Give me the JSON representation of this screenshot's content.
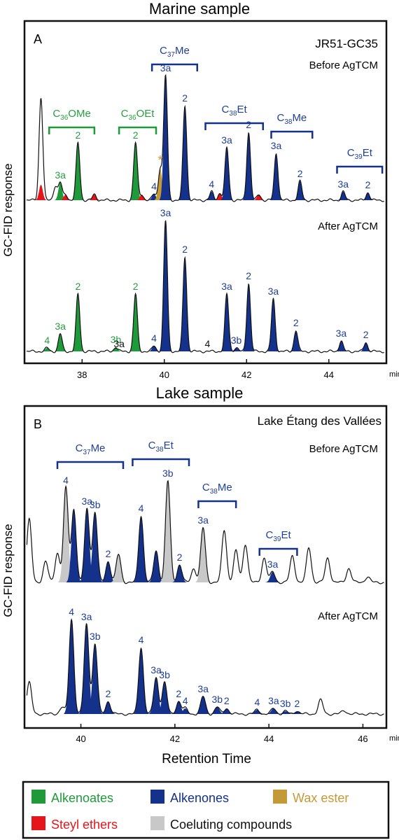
{
  "chart_data": [
    {
      "type": "line",
      "panel_label": "A",
      "title": "Marine sample",
      "sample": "JR51-GC35",
      "ylabel": "GC-FID response",
      "x_unit": "min",
      "xlim": [
        36.6,
        45.4
      ],
      "x_ticks": [
        38,
        40,
        42,
        44
      ],
      "traces": [
        {
          "label": "Before AgTCM",
          "baseline": 286,
          "peaks": [
            {
              "x": 37.0,
              "h": 125,
              "color": "none"
            },
            {
              "x": 37.0,
              "h": 22,
              "color": "red"
            },
            {
              "x": 37.35,
              "h": 20,
              "color": "none"
            },
            {
              "x": 37.47,
              "h": 25,
              "color": "green",
              "label": "3a"
            },
            {
              "x": 37.6,
              "h": 8,
              "color": "red"
            },
            {
              "x": 37.9,
              "h": 82,
              "color": "green",
              "label": "2"
            },
            {
              "x": 38.3,
              "h": 8,
              "color": "red"
            },
            {
              "x": 39.3,
              "h": 82,
              "color": "green",
              "label": "2"
            },
            {
              "x": 39.45,
              "h": 8,
              "color": "red"
            },
            {
              "x": 39.75,
              "h": 9,
              "color": "blue",
              "label": "4"
            },
            {
              "x": 39.9,
              "h": 45,
              "color": "gold",
              "label": "*"
            },
            {
              "x": 40.03,
              "h": 178,
              "color": "blue",
              "label": "3a"
            },
            {
              "x": 40.5,
              "h": 135,
              "color": "blue",
              "label": "2"
            },
            {
              "x": 41.15,
              "h": 12,
              "color": "blue",
              "label": "4"
            },
            {
              "x": 41.35,
              "h": 10,
              "color": "red"
            },
            {
              "x": 41.52,
              "h": 75,
              "color": "blue",
              "label": "3a"
            },
            {
              "x": 42.05,
              "h": 97,
              "color": "blue",
              "label": "2"
            },
            {
              "x": 42.3,
              "h": 8,
              "color": "red"
            },
            {
              "x": 42.72,
              "h": 67,
              "color": "blue",
              "label": "3a"
            },
            {
              "x": 43.3,
              "h": 27,
              "color": "blue",
              "label": "2"
            },
            {
              "x": 44.35,
              "h": 12,
              "color": "blue",
              "label": "3a"
            },
            {
              "x": 44.95,
              "h": 11,
              "color": "blue",
              "label": "2"
            }
          ],
          "brackets": [
            {
              "label": "C",
              "sub": "36",
              "tail": "OMe",
              "x1": 37.2,
              "x2": 38.3
            },
            {
              "label": "C",
              "sub": "36",
              "tail": "OEt",
              "x1": 38.9,
              "x2": 39.8
            },
            {
              "label": "C",
              "sub": "37",
              "tail": "Me",
              "x1": 39.7,
              "x2": 40.8
            },
            {
              "label": "C",
              "sub": "38",
              "tail": "Et",
              "x1": 41.0,
              "x2": 42.4
            },
            {
              "label": "C",
              "sub": "38",
              "tail": "Me",
              "x1": 42.6,
              "x2": 43.6
            },
            {
              "label": "C",
              "sub": "39",
              "tail": "Et",
              "x1": 44.2,
              "x2": 45.3
            }
          ]
        },
        {
          "label": "After AgTCM",
          "baseline": 502,
          "peaks": [
            {
              "x": 37.15,
              "h": 5,
              "color": "green",
              "label": "4"
            },
            {
              "x": 37.47,
              "h": 25,
              "color": "green",
              "label": "3a"
            },
            {
              "x": 37.9,
              "h": 82,
              "color": "green",
              "label": "2"
            },
            {
              "x": 38.82,
              "h": 6,
              "color": "green",
              "label": "3b"
            },
            {
              "x": 38.9,
              "h": 0,
              "color": "none",
              "label": "3a"
            },
            {
              "x": 39.3,
              "h": 82,
              "color": "green",
              "label": "2"
            },
            {
              "x": 39.75,
              "h": 8,
              "color": "blue",
              "label": "4"
            },
            {
              "x": 40.03,
              "h": 187,
              "color": "blue",
              "label": "3a"
            },
            {
              "x": 40.5,
              "h": 135,
              "color": "blue",
              "label": "2"
            },
            {
              "x": 41.05,
              "h": 0,
              "color": "none",
              "label": "4"
            },
            {
              "x": 41.52,
              "h": 82,
              "color": "blue",
              "label": "3a"
            },
            {
              "x": 41.75,
              "h": 5,
              "color": "blue",
              "label": "3b"
            },
            {
              "x": 42.05,
              "h": 97,
              "color": "blue",
              "label": "2"
            },
            {
              "x": 42.65,
              "h": 75,
              "color": "blue",
              "label": "3a"
            },
            {
              "x": 43.2,
              "h": 30,
              "color": "blue",
              "label": "2"
            },
            {
              "x": 44.3,
              "h": 15,
              "color": "blue",
              "label": "3a"
            },
            {
              "x": 44.9,
              "h": 13,
              "color": "blue",
              "label": "2"
            }
          ],
          "brackets": []
        }
      ]
    },
    {
      "type": "line",
      "panel_label": "B",
      "title": "Lake sample",
      "sample": "Lake Étang des Vallées",
      "ylabel": "GC-FID response",
      "xlabel": "Retention Time",
      "x_unit": "min",
      "xlim": [
        38.8,
        46.5
      ],
      "x_ticks": [
        40,
        42,
        44,
        46
      ],
      "traces": [
        {
          "label": "Before AgTCM",
          "baseline": 832,
          "peaks": [
            {
              "x": 38.9,
              "h": 90,
              "color": "none"
            },
            {
              "x": 39.25,
              "h": 30,
              "color": "none"
            },
            {
              "x": 39.5,
              "h": 42,
              "color": "none"
            },
            {
              "x": 39.68,
              "h": 135,
              "color": "grey",
              "label": "4"
            },
            {
              "x": 39.85,
              "h": 105,
              "color": "blue"
            },
            {
              "x": 40.13,
              "h": 105,
              "color": "blue",
              "label": "3a"
            },
            {
              "x": 40.3,
              "h": 100,
              "color": "blue",
              "label": "3b"
            },
            {
              "x": 40.58,
              "h": 30,
              "color": "blue",
              "label": "2"
            },
            {
              "x": 40.8,
              "h": 40,
              "color": "grey"
            },
            {
              "x": 41.28,
              "h": 95,
              "color": "blue",
              "label": "4"
            },
            {
              "x": 41.6,
              "h": 45,
              "color": "blue"
            },
            {
              "x": 41.85,
              "h": 145,
              "color": "grey",
              "label": "3b"
            },
            {
              "x": 42.1,
              "h": 25,
              "color": "blue",
              "label": "2"
            },
            {
              "x": 42.4,
              "h": 20,
              "color": "none"
            },
            {
              "x": 42.6,
              "h": 78,
              "color": "grey",
              "label": "3a"
            },
            {
              "x": 43.05,
              "h": 75,
              "color": "none"
            },
            {
              "x": 43.3,
              "h": 45,
              "color": "none"
            },
            {
              "x": 43.5,
              "h": 55,
              "color": "none"
            },
            {
              "x": 43.9,
              "h": 35,
              "color": "none"
            },
            {
              "x": 44.08,
              "h": 15,
              "color": "blue",
              "label": "3a"
            },
            {
              "x": 44.5,
              "h": 38,
              "color": "none"
            },
            {
              "x": 44.85,
              "h": 50,
              "color": "none"
            },
            {
              "x": 45.25,
              "h": 35,
              "color": "none"
            },
            {
              "x": 45.7,
              "h": 20,
              "color": "none"
            },
            {
              "x": 46.1,
              "h": 8,
              "color": "none"
            }
          ],
          "brackets": [
            {
              "label": "C",
              "sub": "37",
              "tail": "Me",
              "x1": 39.5,
              "x2": 40.9
            },
            {
              "label": "C",
              "sub": "38",
              "tail": "Et",
              "x1": 41.1,
              "x2": 42.3
            },
            {
              "label": "C",
              "sub": "38",
              "tail": "Me",
              "x1": 42.5,
              "x2": 43.3
            },
            {
              "label": "C",
              "sub": "39",
              "tail": "Et",
              "x1": 43.8,
              "x2": 44.6
            }
          ]
        },
        {
          "label": "After AgTCM",
          "baseline": 1020,
          "peaks": [
            {
              "x": 38.9,
              "h": 45,
              "color": "none"
            },
            {
              "x": 39.6,
              "h": 10,
              "color": "none"
            },
            {
              "x": 39.8,
              "h": 135,
              "color": "blue",
              "label": "4"
            },
            {
              "x": 40.12,
              "h": 128,
              "color": "blue",
              "label": "3a"
            },
            {
              "x": 40.3,
              "h": 100,
              "color": "blue",
              "label": "3b"
            },
            {
              "x": 40.58,
              "h": 18,
              "color": "blue",
              "label": "2"
            },
            {
              "x": 41.28,
              "h": 95,
              "color": "blue",
              "label": "4"
            },
            {
              "x": 41.6,
              "h": 52,
              "color": "blue",
              "label": "3a"
            },
            {
              "x": 41.78,
              "h": 45,
              "color": "blue",
              "label": "3b"
            },
            {
              "x": 42.08,
              "h": 18,
              "color": "blue",
              "label": "2"
            },
            {
              "x": 42.22,
              "h": 8,
              "color": "blue",
              "label": "4"
            },
            {
              "x": 42.6,
              "h": 25,
              "color": "blue",
              "label": "3a"
            },
            {
              "x": 42.9,
              "h": 10,
              "color": "blue",
              "label": "3b"
            },
            {
              "x": 43.1,
              "h": 8,
              "color": "blue",
              "label": "2"
            },
            {
              "x": 43.75,
              "h": 6,
              "color": "blue",
              "label": "4"
            },
            {
              "x": 44.1,
              "h": 8,
              "color": "blue",
              "label": "3a"
            },
            {
              "x": 44.35,
              "h": 4,
              "color": "blue",
              "label": "3b"
            },
            {
              "x": 44.6,
              "h": 4,
              "color": "blue",
              "label": "2"
            },
            {
              "x": 45.1,
              "h": 20,
              "color": "none"
            },
            {
              "x": 45.6,
              "h": 5,
              "color": "none"
            }
          ],
          "brackets": []
        }
      ]
    }
  ],
  "legend": [
    {
      "label": "Alkenoates",
      "color": "#1f9a3a",
      "text_color": "#1f9a3a"
    },
    {
      "label": "Alkenones",
      "color": "#14318c",
      "text_color": "#14318c"
    },
    {
      "label": "Wax ester",
      "color": "#c39a37",
      "text_color": "#c39a37"
    },
    {
      "label": "Steyl ethers",
      "color": "#e6151b",
      "text_color": "#e6151b"
    },
    {
      "label": "Coeluting compounds",
      "color": "#c8c8c8",
      "text_color": "#111111"
    }
  ],
  "colors": {
    "green": "#1f9a3a",
    "blue": "#14318c",
    "gold": "#c39a37",
    "red": "#e6151b",
    "grey": "#c8c8c8",
    "green_text": "#26a03e",
    "blue_text": "#1f3f9a"
  }
}
